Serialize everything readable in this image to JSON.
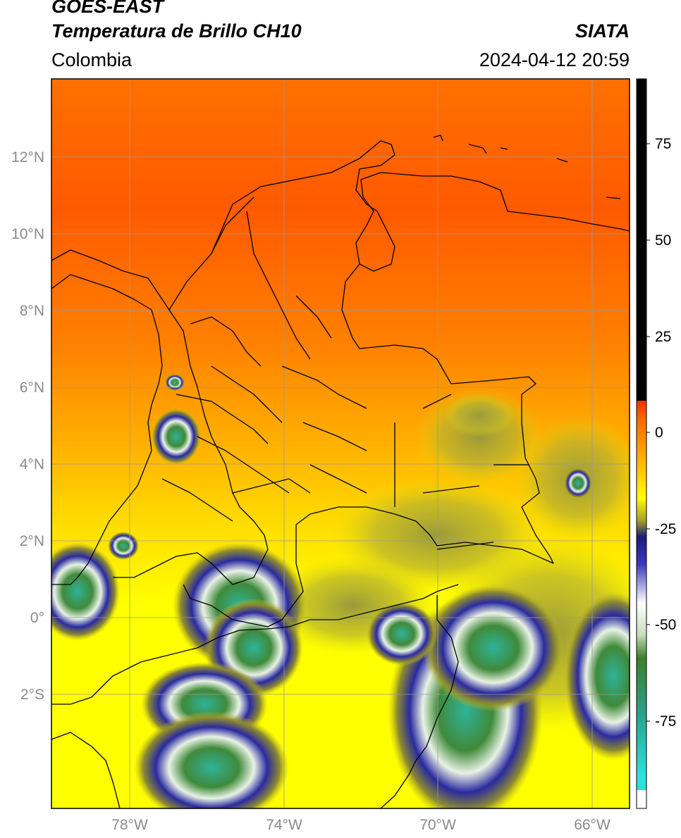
{
  "header": {
    "satellite": "GOES-EAST",
    "product": "Temperatura de Brillo CH10",
    "region": "Colombia",
    "agency": "SIATA",
    "datetime": "2024-04-12 20:59"
  },
  "map": {
    "lat_labels": [
      "12°N",
      "10°N",
      "8°N",
      "6°N",
      "4°N",
      "2°N",
      "0°",
      "2°S"
    ],
    "lon_labels": [
      "78°W",
      "74°W",
      "70°W",
      "66°W"
    ],
    "grid": true
  },
  "colorbar": {
    "ticks": [
      "75",
      "50",
      "25",
      "0",
      "-25",
      "-50",
      "-75"
    ],
    "palette": [
      "#ffffff",
      "#2ee0d8",
      "#2e9e8a",
      "#3f7f2a",
      "#c9ddc0",
      "#ffffff",
      "#3a3ab8",
      "#1a1a7a",
      "#a09a30",
      "#ffff00",
      "#ffc000",
      "#ff8c00",
      "#ff2a00",
      "#000000"
    ]
  }
}
